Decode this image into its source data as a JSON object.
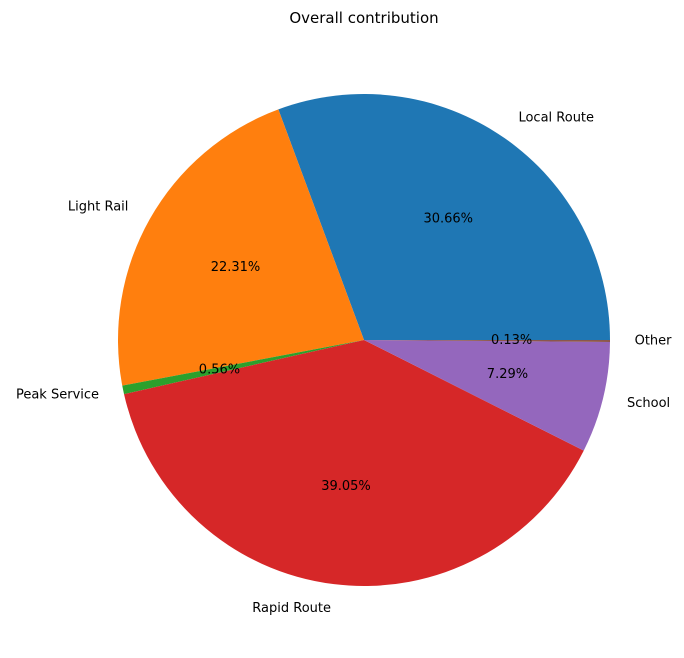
{
  "chart_data": {
    "type": "pie",
    "title": "Overall contribution",
    "categories": [
      "Local Route",
      "Light Rail",
      "Peak Service",
      "Rapid Route",
      "School",
      "Other"
    ],
    "values": [
      30.66,
      22.31,
      0.56,
      39.05,
      7.29,
      0.13
    ],
    "value_labels": [
      "30.66%",
      "22.31%",
      "0.56%",
      "39.05%",
      "7.29%",
      "0.13%"
    ],
    "colors": [
      "#1f77b4",
      "#ff7f0e",
      "#2ca02c",
      "#d62728",
      "#9467bd",
      "#8c564b"
    ],
    "start_angle_deg": 0,
    "direction": "counterclockwise",
    "legend": "none"
  }
}
